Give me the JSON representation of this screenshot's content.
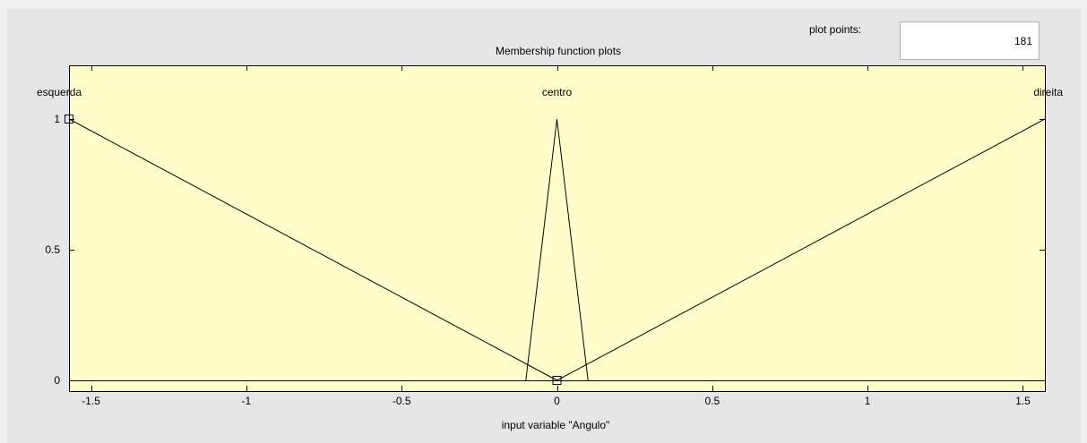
{
  "window": {
    "panel_bg": "#e6e6e6",
    "plot_bg": "#ffffcc",
    "line_color": "#000000"
  },
  "controls": {
    "plot_points_label": "plot points:",
    "plot_points_value": "181"
  },
  "chart_data": {
    "type": "line",
    "title": "Membership function plots",
    "xlabel": "input variable \"Angulo\"",
    "ylabel": "",
    "xlim": [
      -1.5708,
      1.5708
    ],
    "ylim": [
      0,
      1
    ],
    "grid": false,
    "x_ticks": [
      -1.5,
      -1,
      -0.5,
      0,
      0.5,
      1,
      1.5
    ],
    "x_tick_labels": [
      "-1.5",
      "-1",
      "-0.5",
      "0",
      "0.5",
      "1",
      "1.5"
    ],
    "y_ticks": [
      0,
      0.5,
      1
    ],
    "y_tick_labels": [
      "0",
      "0.5",
      "1"
    ],
    "series": [
      {
        "name": "esquerda",
        "type": "trimf",
        "x": [
          -1.5708,
          -1.5708,
          0
        ],
        "y": [
          1,
          1,
          0
        ]
      },
      {
        "name": "centro",
        "type": "trimf",
        "x": [
          -0.1,
          0,
          0.1
        ],
        "y": [
          0,
          1,
          0
        ]
      },
      {
        "name": "direita",
        "type": "trimf",
        "x": [
          0,
          1.5708,
          1.5708
        ],
        "y": [
          0,
          1,
          1
        ]
      }
    ],
    "markers": [
      {
        "x": -1.5708,
        "y": 1
      },
      {
        "x": 0,
        "y": 0
      }
    ]
  }
}
